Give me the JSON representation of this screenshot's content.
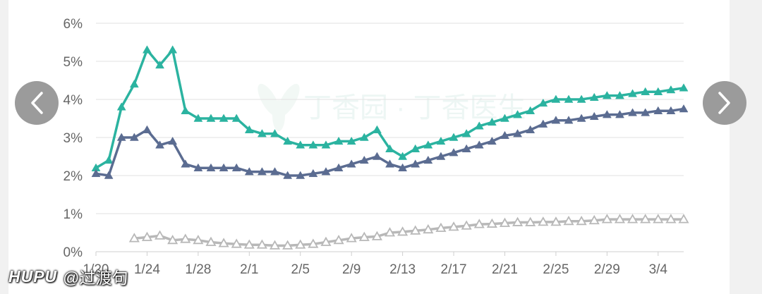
{
  "watermark": {
    "brand": "HUPU",
    "handle": "@过渡句"
  },
  "bg_watermark": {
    "text": "丁香园 · 丁香医生"
  },
  "nav": {
    "prev_icon": "chevron-left-icon",
    "next_icon": "chevron-right-icon"
  },
  "chart_data": {
    "type": "line",
    "title": "",
    "xlabel": "",
    "ylabel": "",
    "ylim": [
      0,
      6
    ],
    "y_ticks": [
      "0%",
      "1%",
      "2%",
      "3%",
      "4%",
      "5%",
      "6%"
    ],
    "x_tick_labels": [
      "1/20",
      "1/24",
      "1/28",
      "2/1",
      "2/5",
      "2/9",
      "2/13",
      "2/17",
      "2/21",
      "2/25",
      "2/29",
      "3/4"
    ],
    "x_tick_indices": [
      0,
      4,
      8,
      12,
      16,
      20,
      24,
      28,
      32,
      36,
      40,
      44
    ],
    "grid": true,
    "series": [
      {
        "color": "#2bb3a0",
        "marker": "filled-triangle",
        "start_index": 0,
        "values": [
          2.2,
          2.4,
          3.8,
          4.4,
          5.3,
          4.9,
          5.3,
          3.7,
          3.5,
          3.5,
          3.5,
          3.5,
          3.2,
          3.1,
          3.1,
          2.9,
          2.8,
          2.8,
          2.8,
          2.9,
          2.9,
          3.0,
          3.2,
          2.7,
          2.5,
          2.7,
          2.8,
          2.9,
          3.0,
          3.1,
          3.3,
          3.4,
          3.5,
          3.6,
          3.7,
          3.9,
          4.0,
          4.0,
          4.0,
          4.05,
          4.1,
          4.1,
          4.15,
          4.2,
          4.2,
          4.25,
          4.3
        ]
      },
      {
        "color": "#5b6c91",
        "marker": "filled-triangle",
        "start_index": 0,
        "values": [
          2.05,
          2.0,
          3.0,
          3.0,
          3.2,
          2.8,
          2.9,
          2.3,
          2.2,
          2.2,
          2.2,
          2.2,
          2.1,
          2.1,
          2.1,
          2.0,
          2.0,
          2.05,
          2.1,
          2.2,
          2.3,
          2.4,
          2.5,
          2.3,
          2.2,
          2.3,
          2.4,
          2.5,
          2.6,
          2.7,
          2.8,
          2.9,
          3.05,
          3.1,
          3.2,
          3.35,
          3.45,
          3.45,
          3.5,
          3.55,
          3.6,
          3.6,
          3.65,
          3.65,
          3.7,
          3.7,
          3.75
        ]
      },
      {
        "color": "#b8b8b8",
        "marker": "hollow-triangle",
        "start_index": 3,
        "values": [
          0.35,
          0.38,
          0.42,
          0.3,
          0.33,
          0.3,
          0.25,
          0.22,
          0.2,
          0.18,
          0.18,
          0.16,
          0.16,
          0.18,
          0.2,
          0.25,
          0.3,
          0.35,
          0.38,
          0.4,
          0.5,
          0.52,
          0.55,
          0.58,
          0.62,
          0.65,
          0.68,
          0.72,
          0.73,
          0.75,
          0.77,
          0.77,
          0.78,
          0.78,
          0.8,
          0.8,
          0.82,
          0.85,
          0.85,
          0.85,
          0.85,
          0.85,
          0.85,
          0.85
        ]
      }
    ]
  }
}
